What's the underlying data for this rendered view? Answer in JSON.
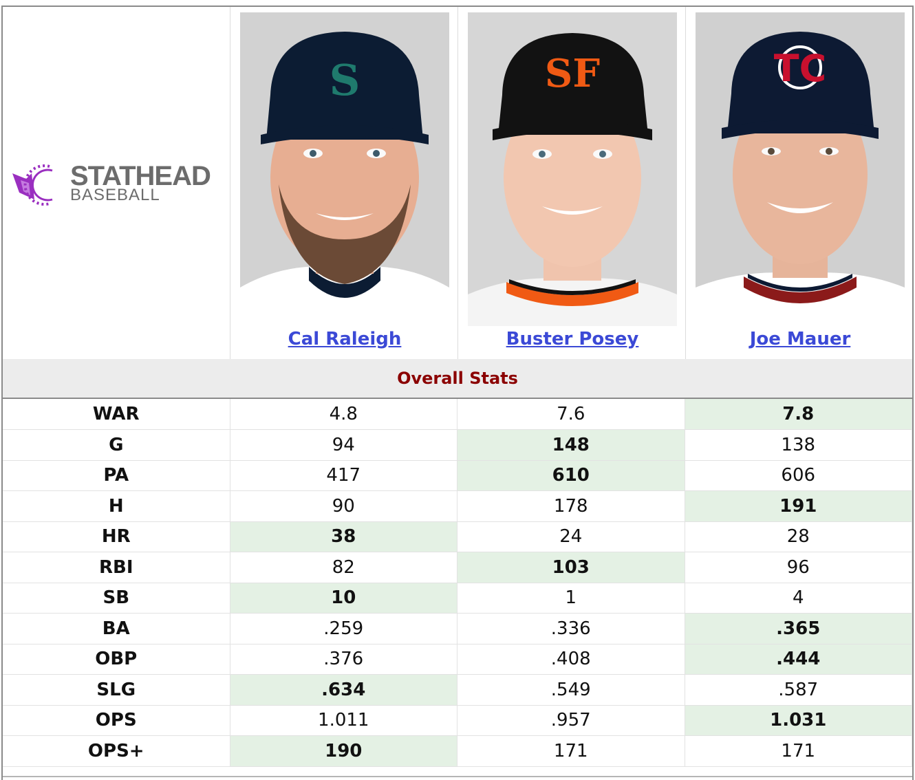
{
  "brand": {
    "line1": "STATHEAD",
    "line2": "BASEBALL",
    "accent_color": "#9a2fc0"
  },
  "players": [
    {
      "name": "Cal Raleigh",
      "cap_color": "#0c1c33",
      "logo_color": "#1f7a6d",
      "jersey_color": "#ffffff",
      "collar_color": "#0c1c33"
    },
    {
      "name": "Buster Posey",
      "cap_color": "#121212",
      "logo_color": "#f05a14",
      "jersey_color": "#f4f4f4",
      "collar_color": "#f05a14"
    },
    {
      "name": "Joe Mauer",
      "cap_color": "#0d1a33",
      "logo_color": "#c8102e",
      "jersey_color": "#ffffff",
      "collar_color": "#8b1a1a"
    }
  ],
  "section_title": "Overall Stats",
  "stats": [
    {
      "label": "WAR",
      "values": [
        "4.8",
        "7.6",
        "7.8"
      ],
      "best": 2
    },
    {
      "label": "G",
      "values": [
        "94",
        "148",
        "138"
      ],
      "best": 1
    },
    {
      "label": "PA",
      "values": [
        "417",
        "610",
        "606"
      ],
      "best": 1
    },
    {
      "label": "H",
      "values": [
        "90",
        "178",
        "191"
      ],
      "best": 2
    },
    {
      "label": "HR",
      "values": [
        "38",
        "24",
        "28"
      ],
      "best": 0
    },
    {
      "label": "RBI",
      "values": [
        "82",
        "103",
        "96"
      ],
      "best": 1
    },
    {
      "label": "SB",
      "values": [
        "10",
        "1",
        "4"
      ],
      "best": 0
    },
    {
      "label": "BA",
      "values": [
        ".259",
        ".336",
        ".365"
      ],
      "best": 2
    },
    {
      "label": "OBP",
      "values": [
        ".376",
        ".408",
        ".444"
      ],
      "best": 2
    },
    {
      "label": "SLG",
      "values": [
        ".634",
        ".549",
        ".587"
      ],
      "best": 0
    },
    {
      "label": "OPS",
      "values": [
        "1.011",
        ".957",
        "1.031"
      ],
      "best": 2
    },
    {
      "label": "OPS+",
      "values": [
        "190",
        "171",
        "171"
      ],
      "best": 0
    }
  ]
}
